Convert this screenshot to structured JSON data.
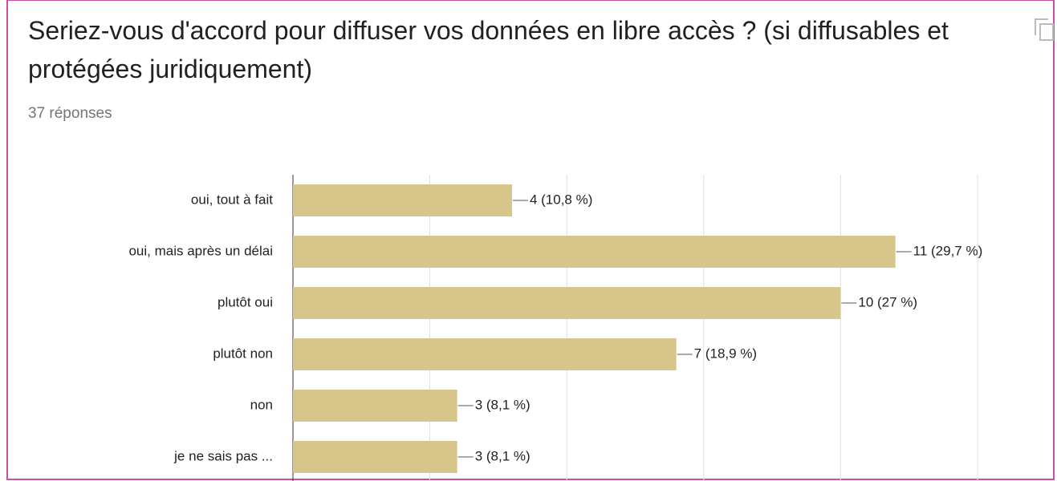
{
  "chart_data": {
    "type": "bar",
    "orientation": "horizontal",
    "title": "Seriez-vous d'accord pour diffuser vos données en libre accès ? (si diffusables et protégées juridiquement)",
    "subtitle": "37 réponses",
    "categories": [
      "oui, tout à fait",
      "oui, mais après un délai",
      "plutôt oui",
      "plutôt non",
      "non",
      "je ne sais pas ..."
    ],
    "values": [
      4,
      11,
      10,
      7,
      3,
      3
    ],
    "value_labels": [
      "4 (10,8 %)",
      "11 (29,7 %)",
      "10 (27 %)",
      "7 (18,9 %)",
      "3 (8,1 %)",
      "3 (8,1 %)"
    ],
    "color": "#d7c68a",
    "xlim": [
      0,
      12.5
    ],
    "xticks": [
      0,
      2.5,
      5,
      7.5,
      10,
      12.5
    ],
    "grid": true
  }
}
